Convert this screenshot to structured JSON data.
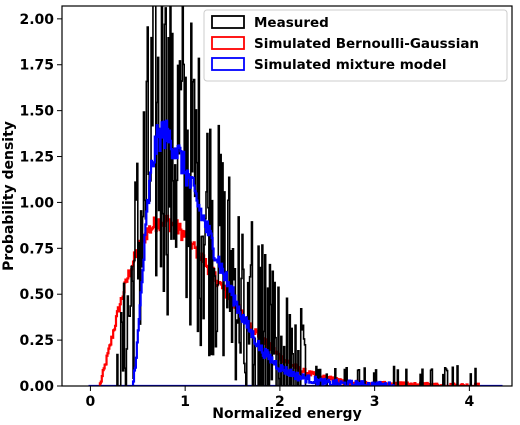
{
  "chart_data": {
    "type": "histogram",
    "xlabel": "Normalized energy",
    "ylabel": "Probability density",
    "xlim": [
      -0.3,
      4.45
    ],
    "ylim": [
      0,
      2.07
    ],
    "xticks": [
      0,
      1,
      2,
      3,
      4
    ],
    "yticks": [
      0.0,
      0.25,
      0.5,
      0.75,
      1.0,
      1.25,
      1.5,
      1.75,
      2.0
    ],
    "grid": false,
    "legend_position": "top-right",
    "series": [
      {
        "name": "Measured",
        "color": "#000000",
        "style": "noisy step histogram",
        "x_start": 0.28,
        "x_end": 4.1,
        "bin_width": 0.01,
        "envelope_x": [
          0.28,
          0.35,
          0.45,
          0.55,
          0.65,
          0.75,
          0.85,
          0.95,
          1.05,
          1.2,
          1.35,
          1.5,
          1.7,
          1.9,
          2.1,
          2.4,
          2.8,
          3.2,
          3.6,
          4.1
        ],
        "envelope_y": [
          0.0,
          0.2,
          0.55,
          0.95,
          1.3,
          1.4,
          1.38,
          1.3,
          1.18,
          0.98,
          0.78,
          0.6,
          0.42,
          0.28,
          0.16,
          0.07,
          0.025,
          0.01,
          0.004,
          0.0
        ],
        "peak": 1.97
      },
      {
        "name": "Simulated Bernoulli-Gaussian",
        "color": "#ff0000",
        "style": "thick step histogram",
        "x_start": 0.1,
        "x_end": 4.1,
        "bin_width": 0.01,
        "envelope_x": [
          0.1,
          0.2,
          0.3,
          0.4,
          0.5,
          0.6,
          0.7,
          0.8,
          0.9,
          1.0,
          1.1,
          1.2,
          1.4,
          1.6,
          1.8,
          2.0,
          2.2,
          2.4,
          2.7,
          3.0,
          3.5,
          4.1
        ],
        "envelope_y": [
          0.0,
          0.2,
          0.42,
          0.6,
          0.74,
          0.84,
          0.89,
          0.9,
          0.87,
          0.82,
          0.75,
          0.68,
          0.53,
          0.39,
          0.26,
          0.16,
          0.09,
          0.05,
          0.02,
          0.01,
          0.003,
          0.0
        ]
      },
      {
        "name": "Simulated mixture model",
        "color": "#0000ff",
        "style": "thick step histogram",
        "x_start": 0.45,
        "x_end": 3.2,
        "bin_width": 0.01,
        "envelope_x": [
          0.45,
          0.5,
          0.55,
          0.6,
          0.65,
          0.7,
          0.75,
          0.8,
          0.9,
          1.0,
          1.1,
          1.2,
          1.4,
          1.6,
          1.8,
          2.0,
          2.2,
          2.5,
          3.2
        ],
        "envelope_y": [
          0.0,
          0.25,
          0.6,
          0.95,
          1.2,
          1.33,
          1.38,
          1.37,
          1.3,
          1.18,
          1.04,
          0.9,
          0.62,
          0.38,
          0.2,
          0.1,
          0.05,
          0.015,
          0.0
        ]
      }
    ]
  }
}
